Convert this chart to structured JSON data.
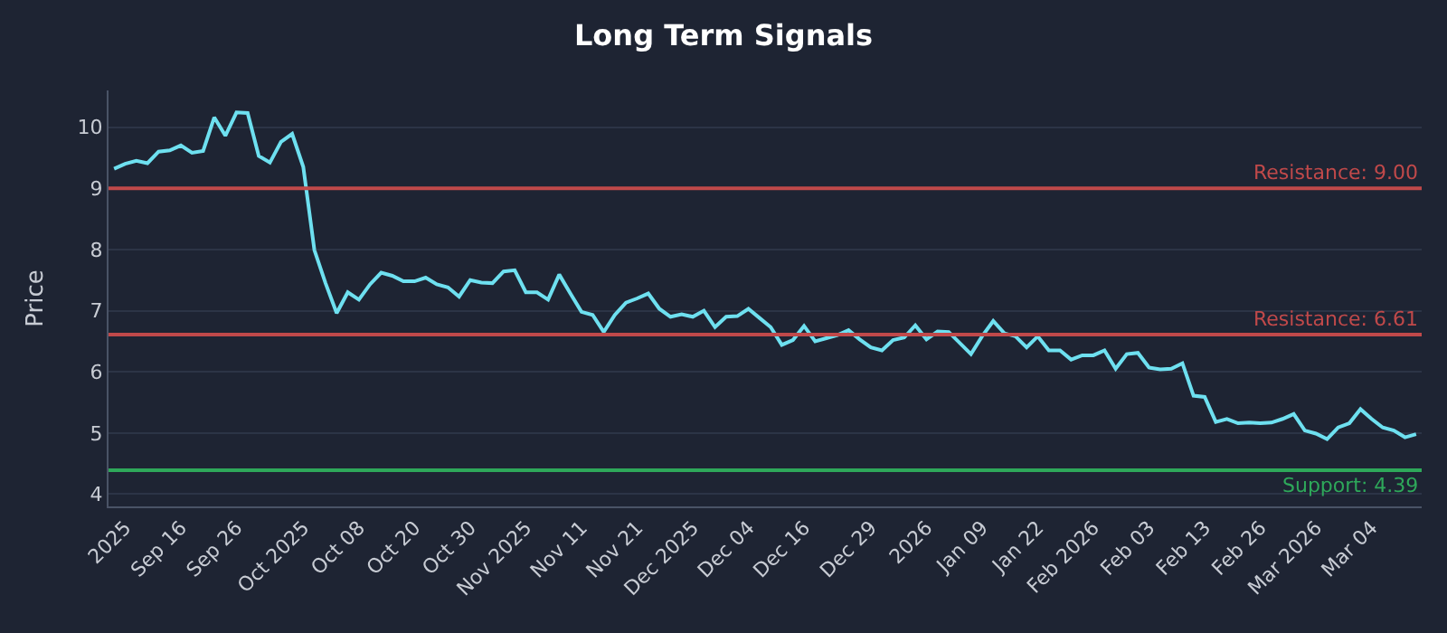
{
  "chart_data": {
    "type": "line",
    "title": "Long Term Signals",
    "ylabel": "Price",
    "categories": [
      null,
      "2025",
      null,
      null,
      null,
      null,
      "Sep 16",
      null,
      null,
      null,
      null,
      "Sep 26",
      null,
      null,
      null,
      null,
      null,
      "Oct 2025",
      null,
      null,
      null,
      null,
      "Oct 08",
      null,
      null,
      null,
      null,
      "Oct 20",
      null,
      null,
      null,
      null,
      "Oct 30",
      null,
      null,
      null,
      null,
      "Nov 2025",
      null,
      null,
      null,
      null,
      "Nov 11",
      null,
      null,
      null,
      null,
      "Nov 21",
      null,
      null,
      null,
      null,
      "Dec 2025",
      null,
      null,
      null,
      null,
      "Dec 04",
      null,
      null,
      null,
      null,
      "Dec 16",
      null,
      null,
      null,
      null,
      null,
      "Dec 29",
      null,
      null,
      null,
      null,
      "2026",
      null,
      null,
      null,
      null,
      "Jan 09",
      null,
      null,
      null,
      null,
      "Jan 22",
      null,
      null,
      null,
      null,
      "Feb 2026",
      null,
      null,
      null,
      null,
      "Feb 03",
      null,
      null,
      null,
      null,
      "Feb 13",
      null,
      null,
      null,
      null,
      "Feb 26",
      null,
      null,
      null,
      null,
      "Mar 2026",
      null,
      null,
      null,
      null,
      "Mar 04",
      null,
      null,
      null,
      null
    ],
    "series": [
      {
        "color": "#6ee0f0",
        "values": [
          9.32,
          9.4,
          9.45,
          9.41,
          9.6,
          9.62,
          9.7,
          9.58,
          9.61,
          10.16,
          9.86,
          10.24,
          10.23,
          9.53,
          9.42,
          9.76,
          9.89,
          9.35,
          7.99,
          7.45,
          6.96,
          7.3,
          7.18,
          7.43,
          7.62,
          7.57,
          7.48,
          7.48,
          7.54,
          7.43,
          7.38,
          7.23,
          7.5,
          7.46,
          7.45,
          7.64,
          7.66,
          7.3,
          7.3,
          7.18,
          7.59,
          7.28,
          6.98,
          6.93,
          6.65,
          6.93,
          7.13,
          7.2,
          7.28,
          7.03,
          6.9,
          6.94,
          6.9,
          7.0,
          6.73,
          6.9,
          6.91,
          7.03,
          6.88,
          6.73,
          6.44,
          6.52,
          6.75,
          6.5,
          6.55,
          6.6,
          6.68,
          6.53,
          6.4,
          6.35,
          6.52,
          6.56,
          6.76,
          6.53,
          6.66,
          6.65,
          6.47,
          6.29,
          6.58,
          6.83,
          6.63,
          6.58,
          6.4,
          6.58,
          6.35,
          6.35,
          6.2,
          6.27,
          6.27,
          6.35,
          6.05,
          6.29,
          6.31,
          6.07,
          6.04,
          6.05,
          6.14,
          5.61,
          5.59,
          5.18,
          5.23,
          5.16,
          5.17,
          5.16,
          5.17,
          5.23,
          5.31,
          5.04,
          4.99,
          4.9,
          5.09,
          5.16,
          5.39,
          5.23,
          5.09,
          5.04,
          4.93,
          4.98
        ]
      }
    ],
    "ylim": [
      3.8,
      10.6
    ],
    "yticks": [
      4,
      5,
      6,
      7,
      8,
      9,
      10
    ],
    "grid": "y",
    "legend": false,
    "marker": "none",
    "line_style": "solid",
    "ref_lines": [
      {
        "axis": "y",
        "value": 9.0,
        "label": "Resistance: 9.00",
        "color": "#c0494a"
      },
      {
        "axis": "y",
        "value": 6.61,
        "label": "Resistance: 6.61",
        "color": "#c0494a"
      },
      {
        "axis": "y",
        "value": 4.39,
        "label": "Support: 4.39",
        "color": "#2ea85a"
      }
    ]
  }
}
